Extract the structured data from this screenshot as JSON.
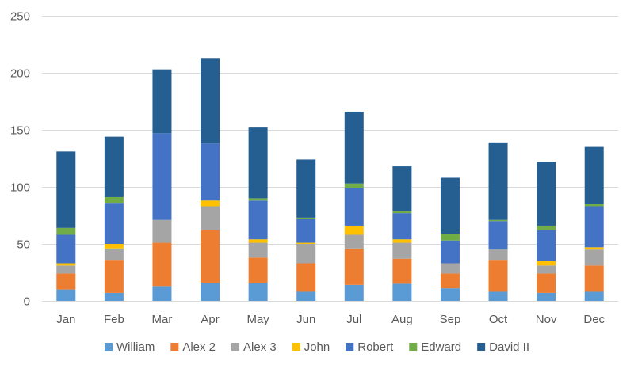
{
  "chart_data": {
    "type": "bar",
    "stacked": true,
    "title": "",
    "xlabel": "",
    "ylabel": "",
    "ylim": [
      0,
      250
    ],
    "y_ticks": [
      0,
      50,
      100,
      150,
      200,
      250
    ],
    "grid": true,
    "legend_position": "bottom",
    "categories": [
      "Jan",
      "Feb",
      "Mar",
      "Apr",
      "May",
      "Jun",
      "Jul",
      "Aug",
      "Sep",
      "Oct",
      "Nov",
      "Dec"
    ],
    "series": [
      {
        "name": "William",
        "color": "#5b9bd5",
        "values": [
          10,
          7,
          13,
          16,
          16,
          8,
          14,
          15,
          11,
          8,
          7,
          8
        ]
      },
      {
        "name": "Alex 2",
        "color": "#ed7d31",
        "values": [
          14,
          29,
          38,
          46,
          22,
          25,
          32,
          22,
          13,
          28,
          17,
          23
        ]
      },
      {
        "name": "Alex 3",
        "color": "#a5a5a5",
        "values": [
          7,
          10,
          20,
          21,
          13,
          17,
          12,
          14,
          9,
          9,
          7,
          14
        ]
      },
      {
        "name": "John",
        "color": "#ffc000",
        "values": [
          2,
          4,
          0,
          5,
          3,
          1,
          8,
          3,
          0,
          0,
          4,
          2
        ]
      },
      {
        "name": "Robert",
        "color": "#4472c4",
        "values": [
          25,
          36,
          76,
          50,
          34,
          21,
          33,
          23,
          20,
          25,
          27,
          36
        ]
      },
      {
        "name": "Edward",
        "color": "#70ad47",
        "values": [
          6,
          5,
          0,
          0,
          2,
          1,
          4,
          2,
          6,
          1,
          4,
          2
        ]
      },
      {
        "name": "David II",
        "color": "#255e91",
        "values": [
          67,
          53,
          56,
          75,
          62,
          51,
          63,
          39,
          49,
          68,
          56,
          50
        ]
      }
    ]
  }
}
